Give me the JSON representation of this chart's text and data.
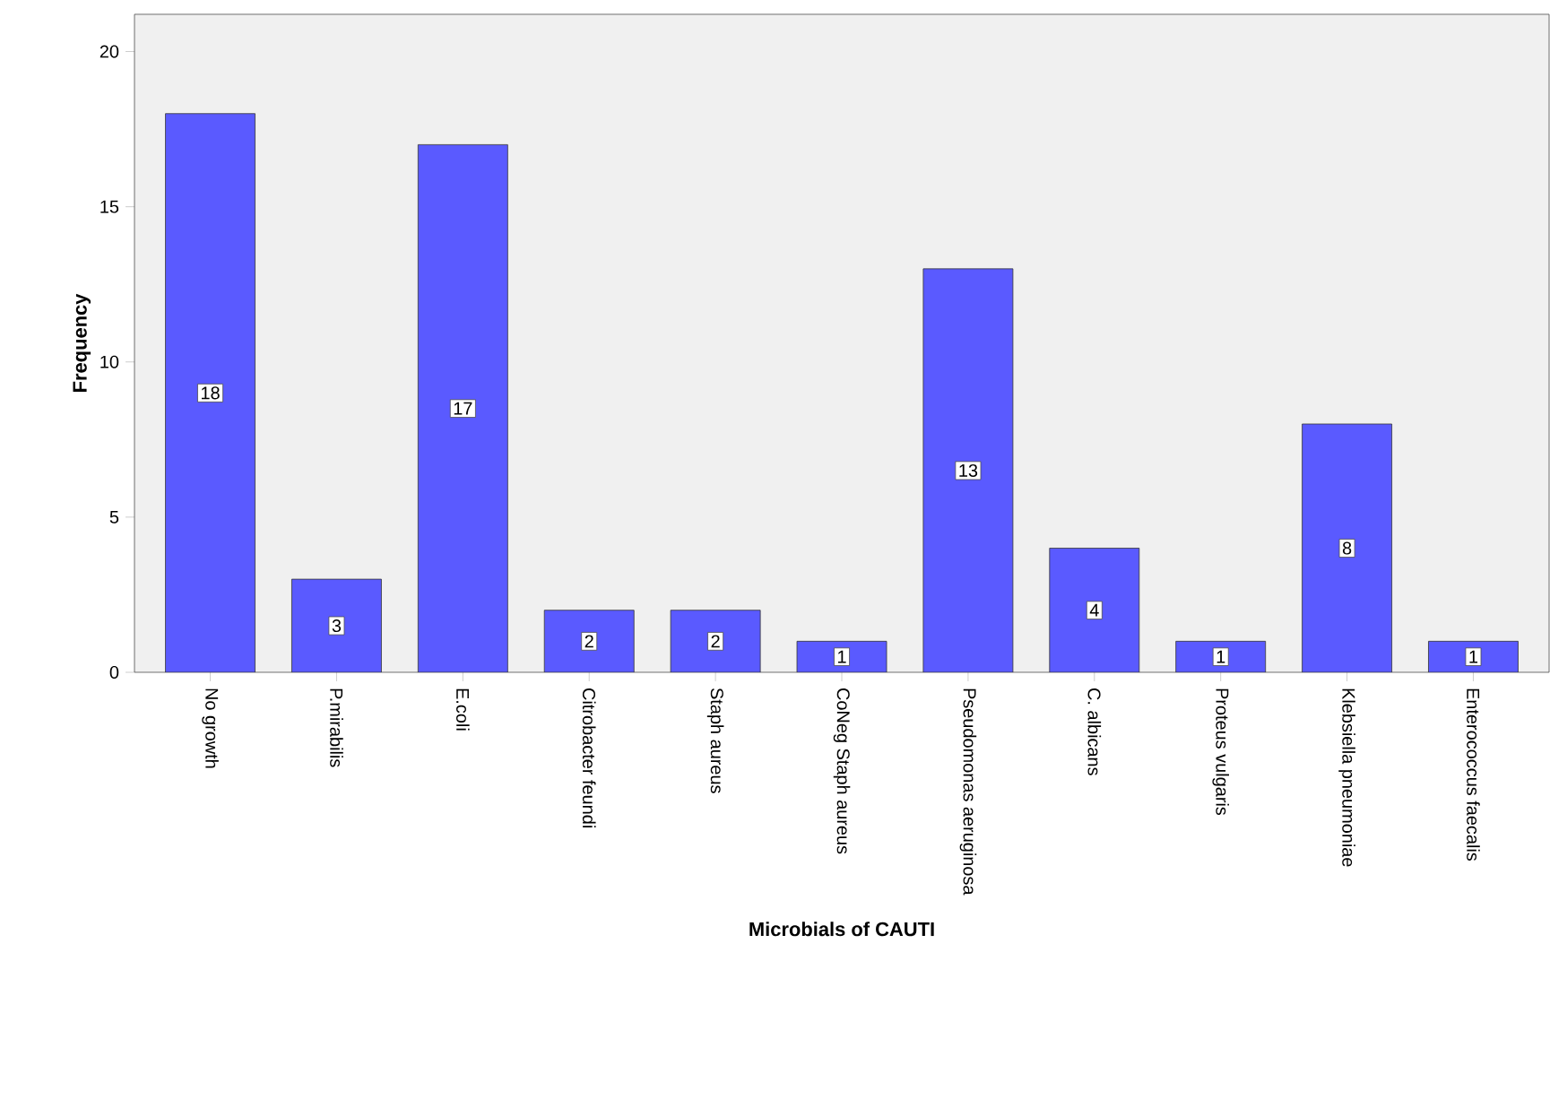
{
  "chart_data": {
    "type": "bar",
    "xlabel": "Microbials of CAUTI",
    "ylabel": "Frequency",
    "categories": [
      "No growth",
      "P.mirabilis",
      "E.coli",
      "Citrobacter feundi",
      "Staph aureus",
      "CoNeg Staph aureus",
      "Pseudomonas aeruginosa",
      "C. albicans",
      "Proteus vulgaris",
      "Klebsiella  pneumoniae",
      "Enterococcus faecalis"
    ],
    "values": [
      18,
      3,
      17,
      2,
      2,
      1,
      13,
      4,
      1,
      8,
      1
    ],
    "color": "#5a5aff",
    "ylim": [
      0,
      21.2
    ],
    "yticks": [
      0,
      5,
      10,
      15,
      20
    ],
    "grid": false,
    "data_labels": true
  }
}
